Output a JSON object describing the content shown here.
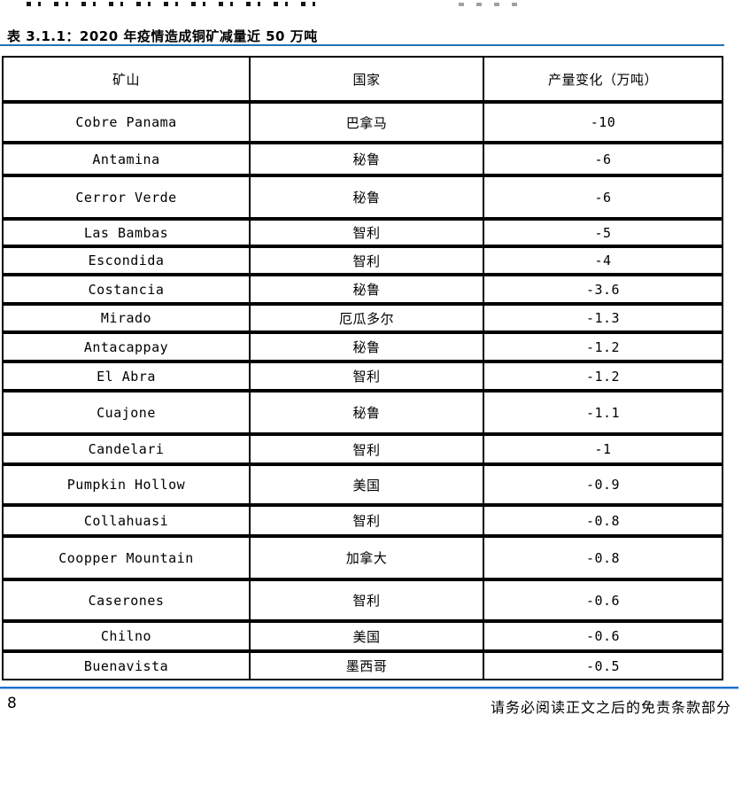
{
  "page": {
    "title": "表 3.1.1：2020 年疫情造成铜矿减量近 50 万吨",
    "page_number": "8",
    "footer_disclaimer": "请务必阅读正文之后的免责条款部分"
  },
  "colors": {
    "title_rule_blue": "#2273b8",
    "footer_rule_blue": "#1c6fcd",
    "footer_rule_light": "#9cc3e8",
    "table_border": "#000000"
  },
  "table": {
    "headers": {
      "mine": "矿山",
      "country": "国家",
      "change": "产量变化（万吨）"
    },
    "rows": [
      {
        "mine": "Cobre Panama",
        "country": "巴拿马",
        "change": "-10"
      },
      {
        "mine": "Antamina",
        "country": "秘鲁",
        "change": "-6"
      },
      {
        "mine": "Cerror Verde",
        "country": "秘鲁",
        "change": "-6"
      },
      {
        "mine": "Las Bambas",
        "country": "智利",
        "change": "-5"
      },
      {
        "mine": "Escondida",
        "country": "智利",
        "change": "-4"
      },
      {
        "mine": "Costancia",
        "country": "秘鲁",
        "change": "-3.6"
      },
      {
        "mine": "Mirado",
        "country": "厄瓜多尔",
        "change": "-1.3"
      },
      {
        "mine": "Antacappay",
        "country": "秘鲁",
        "change": "-1.2"
      },
      {
        "mine": "El Abra",
        "country": "智利",
        "change": "-1.2"
      },
      {
        "mine": "Cuajone",
        "country": "秘鲁",
        "change": "-1.1"
      },
      {
        "mine": "Candelari",
        "country": "智利",
        "change": "-1"
      },
      {
        "mine": "Pumpkin Hollow",
        "country": "美国",
        "change": "-0.9"
      },
      {
        "mine": "Collahuasi",
        "country": "智利",
        "change": "-0.8"
      },
      {
        "mine": "Coopper Mountain",
        "country": "加拿大",
        "change": "-0.8"
      },
      {
        "mine": "Caserones",
        "country": "智利",
        "change": "-0.6"
      },
      {
        "mine": "Chilno",
        "country": "美国",
        "change": "-0.6"
      },
      {
        "mine": "Buenavista",
        "country": "墨西哥",
        "change": "-0.5"
      }
    ]
  }
}
